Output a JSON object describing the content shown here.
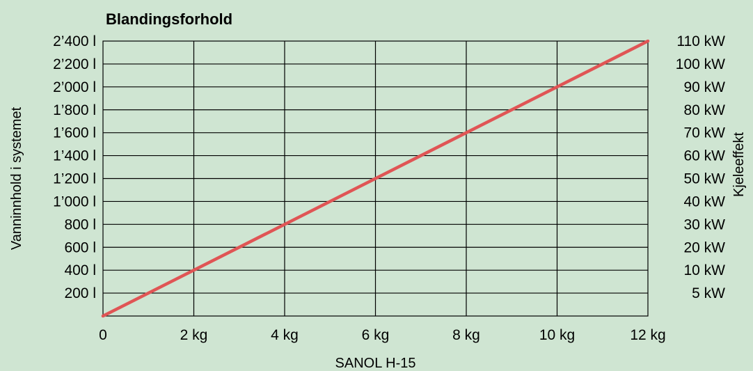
{
  "chart_data": {
    "type": "line",
    "title": "Blandingsforhold",
    "xlabel": "SANOL H-15",
    "ylabel_left": "Vanninnhold i systemet",
    "ylabel_right": "Kjeleeffekt",
    "x_ticks": [
      "0",
      "2 kg",
      "4 kg",
      "6 kg",
      "8 kg",
      "10 kg",
      "12 kg"
    ],
    "x_tick_values": [
      0,
      2,
      4,
      6,
      8,
      10,
      12
    ],
    "xlim": [
      0,
      12
    ],
    "y_ticks_left": [
      "200 l",
      "400 l",
      "600 l",
      "800 l",
      "1’000 l",
      "1’200 l",
      "1’400 l",
      "1’600 l",
      "1’800 l",
      "2’000 l",
      "2’200 l",
      "2’400 l"
    ],
    "y_tick_values_left": [
      200,
      400,
      600,
      800,
      1000,
      1200,
      1400,
      1600,
      1800,
      2000,
      2200,
      2400
    ],
    "ylim_left": [
      0,
      2400
    ],
    "y_ticks_right": [
      "5 kW",
      "10 kW",
      "20 kW",
      "30 kW",
      "40 kW",
      "50 kW",
      "60 kW",
      "70 kW",
      "80 kW",
      "90 kW",
      "100 kW",
      "110 kW"
    ],
    "grid": true,
    "series": [
      {
        "x": [
          0,
          12
        ],
        "y": [
          0,
          2400
        ],
        "color": "#e05555"
      }
    ],
    "colors": {
      "background": "#cfe5d2",
      "grid": "#000000",
      "line": "#e05555"
    }
  }
}
